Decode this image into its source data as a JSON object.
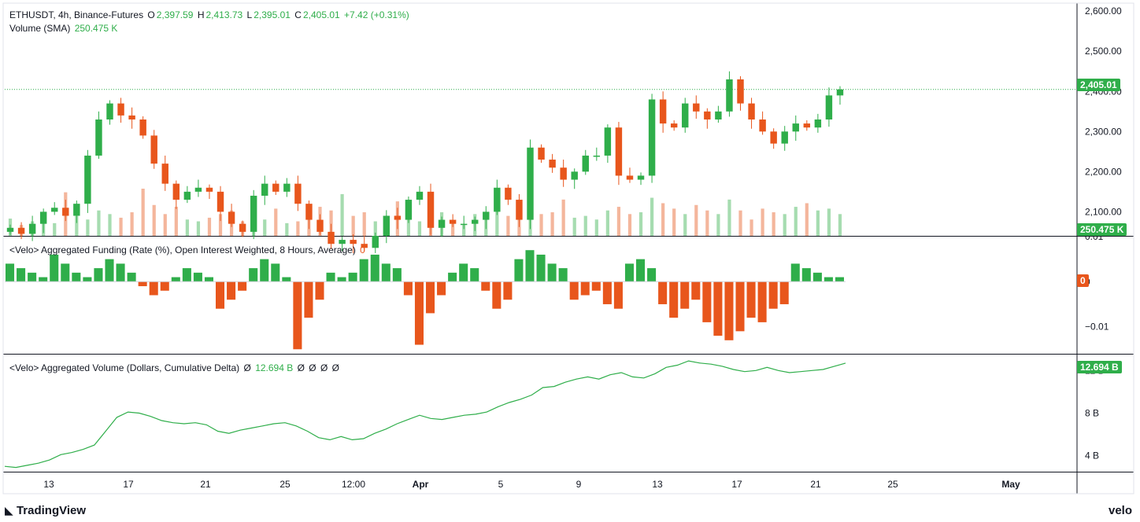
{
  "header": {
    "symbol": "ETHUSDT, 4h, Binance-Futures",
    "o_label": "O",
    "o_value": "2,397.59",
    "h_label": "H",
    "h_value": "2,413.73",
    "l_label": "L",
    "l_value": "2,395.01",
    "c_label": "C",
    "c_value": "2,405.01",
    "change": "+7.42 (+0.31%)",
    "volume_label": "Volume (SMA)",
    "volume_value": "250.475 K"
  },
  "funding": {
    "title": "<Velo> Aggregated Funding (Rate (%), Open Interest Weighted, 8 Hours, Average)",
    "value": "0",
    "tag": "0"
  },
  "cumdelta": {
    "title": "<Velo> Aggregated Volume (Dollars, Cumulative Delta)",
    "null_symbol": "Ø",
    "value": "12.694 B",
    "tag": "12.694 B"
  },
  "price_tag": "2,405.01",
  "volume_tag": "250.475 K",
  "branding": {
    "left": "TradingView",
    "right": "velo"
  },
  "colors": {
    "up": "#2fae4a",
    "down": "#e8561c",
    "line": "#2fae4a",
    "grid": "#131722"
  },
  "chart_data": [
    {
      "type": "candlestick",
      "title": "ETHUSDT, 4h, Binance-Futures",
      "x_ticks": [
        "13",
        "17",
        "21",
        "25",
        "12:00",
        "Apr",
        "5",
        "9",
        "13",
        "17",
        "21",
        "25",
        "May"
      ],
      "y_ticks": [
        "2,600.00",
        "2,500.00",
        "2,400.00",
        "2,300.00",
        "2,200.00",
        "2,100.00"
      ],
      "ylim": [
        2040,
        2620
      ],
      "last_price": 2405.01,
      "close_path": [
        2060,
        2045,
        2070,
        2100,
        2110,
        2090,
        2120,
        2240,
        2330,
        2370,
        2340,
        2330,
        2290,
        2220,
        2170,
        2130,
        2150,
        2160,
        2150,
        2100,
        2070,
        2050,
        2140,
        2170,
        2150,
        2170,
        2120,
        2080,
        2050,
        2020,
        2030,
        2020,
        2010,
        2040,
        2090,
        2080,
        2130,
        2150,
        2060,
        2080,
        2070,
        2070,
        2080,
        2100,
        2160,
        2130,
        2080,
        2260,
        2230,
        2210,
        2180,
        2200,
        2240,
        2240,
        2310,
        2190,
        2180,
        2190,
        2380,
        2320,
        2310,
        2370,
        2350,
        2330,
        2350,
        2430,
        2370,
        2330,
        2300,
        2270,
        2300,
        2320,
        2310,
        2330,
        2390,
        2405
      ]
    },
    {
      "type": "bar",
      "title": "Volume (SMA)",
      "last": "250.475 K",
      "values": [
        95,
        60,
        80,
        130,
        70,
        240,
        110,
        90,
        140,
        120,
        100,
        130,
        260,
        170,
        120,
        160,
        90,
        80,
        100,
        120,
        140,
        80,
        110,
        90,
        150,
        70,
        80,
        120,
        160,
        140,
        230,
        110,
        130,
        80,
        60,
        190,
        140,
        80,
        100,
        130,
        70,
        60,
        120,
        100,
        160,
        110,
        90,
        180,
        120,
        130,
        200,
        100,
        110,
        90,
        140,
        160,
        120,
        130,
        210,
        180,
        150,
        120,
        170,
        140,
        120,
        200,
        140,
        90,
        150,
        130,
        120,
        160,
        180,
        140,
        150,
        120
      ]
    },
    {
      "type": "bar",
      "title": "<Velo> Aggregated Funding (Rate (%), Open Interest Weighted, 8 Hours, Average)",
      "y_ticks": [
        "0.01",
        "0",
        "−0.01"
      ],
      "ylim": [
        -0.016,
        0.01
      ],
      "values": [
        0.004,
        0.003,
        0.002,
        0.001,
        0.006,
        0.004,
        0.002,
        0.001,
        0.003,
        0.005,
        0.004,
        0.002,
        -0.001,
        -0.003,
        -0.002,
        0.001,
        0.003,
        0.002,
        0.001,
        -0.006,
        -0.004,
        -0.002,
        0.003,
        0.005,
        0.004,
        0.001,
        -0.015,
        -0.008,
        -0.004,
        0.002,
        0.001,
        0.002,
        0.005,
        0.006,
        0.004,
        0.003,
        -0.003,
        -0.014,
        -0.007,
        -0.003,
        0.002,
        0.004,
        0.003,
        -0.002,
        -0.006,
        -0.004,
        0.005,
        0.007,
        0.006,
        0.004,
        0.003,
        -0.004,
        -0.003,
        -0.002,
        -0.005,
        -0.006,
        0.004,
        0.005,
        0.003,
        -0.005,
        -0.008,
        -0.006,
        -0.004,
        -0.009,
        -0.012,
        -0.013,
        -0.011,
        -0.008,
        -0.009,
        -0.006,
        -0.005,
        0.004,
        0.003,
        0.002,
        0.001,
        0.001
      ]
    },
    {
      "type": "line",
      "title": "<Velo> Aggregated Volume (Dollars, Cumulative Delta)",
      "y_ticks": [
        "12 B",
        "8 B",
        "4 B"
      ],
      "ylim": [
        2.5,
        13.5
      ],
      "last": "12.694 B",
      "values": [
        3.0,
        2.9,
        3.1,
        3.3,
        3.6,
        4.1,
        4.3,
        4.6,
        5.0,
        6.3,
        7.6,
        8.1,
        8.0,
        7.7,
        7.3,
        7.1,
        7.0,
        7.1,
        6.9,
        6.3,
        6.1,
        6.4,
        6.6,
        6.8,
        7.0,
        7.1,
        6.8,
        6.3,
        5.7,
        5.5,
        5.8,
        5.5,
        5.6,
        6.1,
        6.5,
        7.0,
        7.4,
        7.8,
        7.5,
        7.4,
        7.6,
        7.8,
        7.9,
        8.1,
        8.6,
        9.0,
        9.3,
        9.7,
        10.4,
        10.5,
        10.9,
        11.2,
        11.4,
        11.2,
        11.6,
        11.8,
        11.4,
        11.3,
        11.7,
        12.3,
        12.5,
        12.9,
        12.7,
        12.6,
        12.4,
        12.1,
        11.9,
        12.0,
        12.3,
        12.0,
        11.8,
        11.9,
        12.0,
        12.1,
        12.4,
        12.694
      ]
    }
  ]
}
